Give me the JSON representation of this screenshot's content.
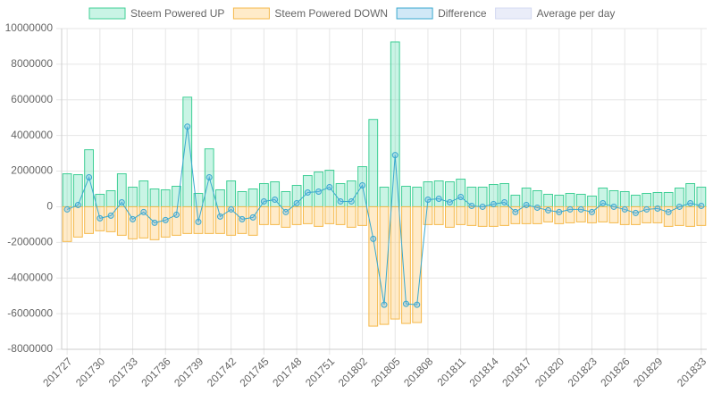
{
  "chart_data": {
    "type": "bar",
    "categories": [
      "201727",
      null,
      null,
      "201730",
      null,
      null,
      "201733",
      null,
      null,
      "201736",
      null,
      null,
      "201739",
      null,
      null,
      "201742",
      null,
      null,
      "201745",
      null,
      null,
      "201748",
      null,
      null,
      "201751",
      null,
      null,
      "201802",
      null,
      null,
      "201805",
      null,
      null,
      "201808",
      null,
      null,
      "201811",
      null,
      null,
      "201814",
      null,
      null,
      "201817",
      null,
      null,
      "201820",
      null,
      null,
      "201823",
      null,
      null,
      "201826",
      null,
      null,
      "201829",
      null,
      null,
      null,
      "201833"
    ],
    "series": [
      {
        "name": "Steem Powered UP",
        "color": "#3fcf95",
        "fill": "rgba(75,220,170,0.3)",
        "values": [
          1850000,
          1800000,
          3200000,
          700000,
          900000,
          1850000,
          1100000,
          1450000,
          1000000,
          950000,
          1150000,
          6150000,
          750000,
          3250000,
          950000,
          1450000,
          850000,
          1000000,
          1300000,
          1400000,
          850000,
          1200000,
          1750000,
          1950000,
          2050000,
          1300000,
          1450000,
          2250000,
          4900000,
          1100000,
          9250000,
          1150000,
          1100000,
          1400000,
          1450000,
          1400000,
          1550000,
          1100000,
          1100000,
          1250000,
          1300000,
          650000,
          1050000,
          900000,
          700000,
          650000,
          750000,
          700000,
          600000,
          1050000,
          900000,
          850000,
          650000,
          750000,
          800000,
          800000,
          1050000,
          1300000,
          1100000
        ]
      },
      {
        "name": "Steem Powered DOWN",
        "color": "#f5b94a",
        "fill": "rgba(255,206,120,0.4)",
        "values": [
          -1950000,
          -1700000,
          -1500000,
          -1350000,
          -1400000,
          -1600000,
          -1800000,
          -1750000,
          -1850000,
          -1700000,
          -1600000,
          -1500000,
          -1500000,
          -1500000,
          -1500000,
          -1600000,
          -1500000,
          -1600000,
          -1000000,
          -1000000,
          -1150000,
          -1000000,
          -950000,
          -1100000,
          -950000,
          -1000000,
          -1150000,
          -1050000,
          -6700000,
          -6600000,
          -6300000,
          -6550000,
          -6500000,
          -1000000,
          -1000000,
          -1150000,
          -1000000,
          -1050000,
          -1100000,
          -1100000,
          -1050000,
          -950000,
          -950000,
          -950000,
          -850000,
          -950000,
          -900000,
          -850000,
          -900000,
          -850000,
          -900000,
          -1000000,
          -1000000,
          -900000,
          -900000,
          -1100000,
          -1050000,
          -1100000,
          -1050000
        ]
      },
      {
        "name": "Difference",
        "type": "line",
        "color": "#3aa9cf",
        "fill": "rgba(100,180,230,0.3)",
        "values": [
          -150000,
          100000,
          1650000,
          -650000,
          -500000,
          250000,
          -700000,
          -300000,
          -900000,
          -750000,
          -450000,
          4500000,
          -850000,
          1650000,
          -550000,
          -150000,
          -700000,
          -600000,
          300000,
          400000,
          -300000,
          200000,
          800000,
          850000,
          1100000,
          300000,
          300000,
          1200000,
          -1800000,
          -5500000,
          2900000,
          -5450000,
          -5500000,
          400000,
          450000,
          250000,
          550000,
          50000,
          0,
          150000,
          250000,
          -300000,
          100000,
          -50000,
          -200000,
          -300000,
          -150000,
          -150000,
          -300000,
          200000,
          0,
          -150000,
          -350000,
          -150000,
          -100000,
          -300000,
          0,
          200000,
          50000
        ]
      },
      {
        "name": "Average per day",
        "color": "#d4daf2",
        "fill": "rgba(220,225,245,0.6)"
      }
    ],
    "ylim": [
      -8000000,
      10000000
    ],
    "yticks": [
      -8000000,
      -6000000,
      -4000000,
      -2000000,
      0,
      2000000,
      4000000,
      6000000,
      8000000,
      10000000
    ],
    "grid": true
  }
}
